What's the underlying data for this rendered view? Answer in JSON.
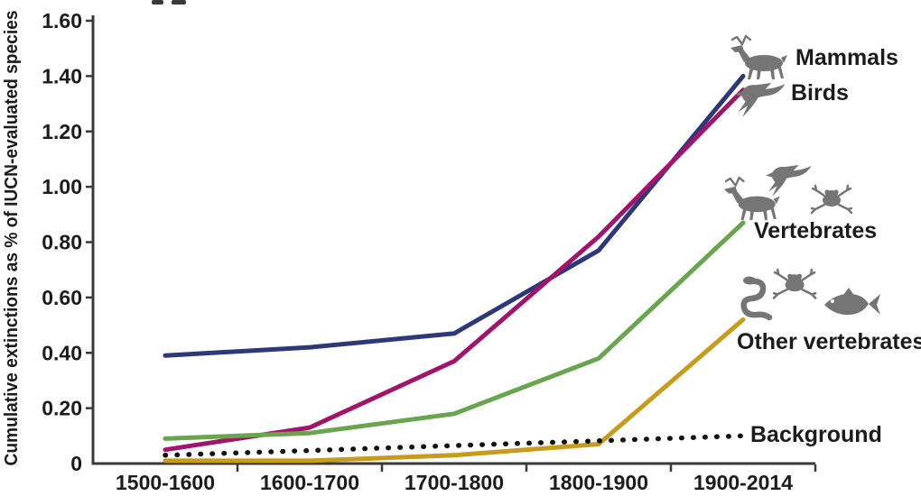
{
  "chart_data": {
    "type": "line",
    "title": "",
    "xlabel": "",
    "ylabel": "Cumulative extinctions as % of IUCN-evaluated species",
    "categories": [
      "1500-1600",
      "1600-1700",
      "1700-1800",
      "1800-1900",
      "1900-2014"
    ],
    "ylim": [
      0,
      1.6
    ],
    "ytick_interval": 0.2,
    "ytick_labels": [
      "0",
      "0.20",
      "0.40",
      "0.60",
      "0.80",
      "1.00",
      "1.20",
      "1.40",
      "1.60"
    ],
    "grid": false,
    "legend_position": "right of line endpoints, with gray animal silhouette icons",
    "series": [
      {
        "name": "Mammals",
        "values": [
          0.39,
          0.42,
          0.47,
          0.77,
          1.4
        ],
        "color": "#2d3878",
        "style": "solid",
        "icon": "deer"
      },
      {
        "name": "Birds",
        "values": [
          0.05,
          0.13,
          0.37,
          0.82,
          1.35
        ],
        "color": "#a0156b",
        "style": "solid",
        "icon": "swallow"
      },
      {
        "name": "Vertebrates",
        "values": [
          0.09,
          0.11,
          0.18,
          0.38,
          0.87
        ],
        "color": "#69a44f",
        "style": "solid",
        "icon": "deer-bird-frog"
      },
      {
        "name": "Other vertebrates",
        "values": [
          0.01,
          0.01,
          0.03,
          0.07,
          0.52
        ],
        "color": "#c79b1e",
        "style": "solid",
        "icon": "snake-frog-fish"
      },
      {
        "name": "Background",
        "values": [
          0.03,
          0.047,
          0.065,
          0.082,
          0.1
        ],
        "color": "#121212",
        "style": "dotted",
        "icon": "none"
      }
    ],
    "axis_color": "#3a3a3a",
    "text_color": "#1c1c1c",
    "icon_color": "#757575"
  }
}
